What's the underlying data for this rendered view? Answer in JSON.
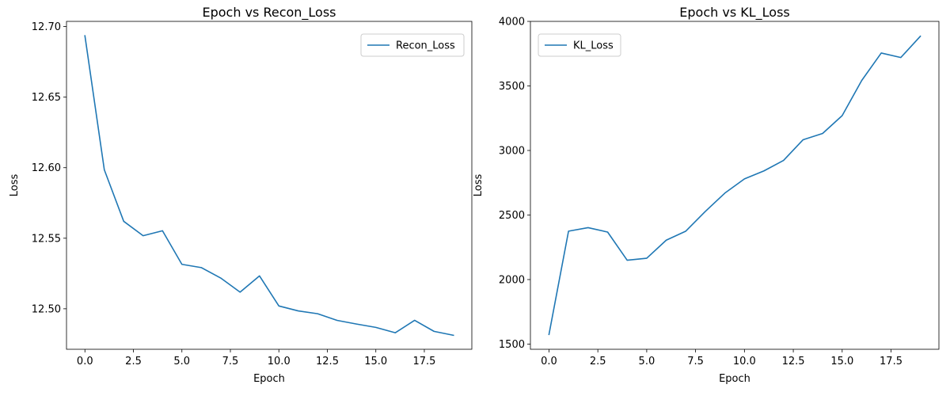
{
  "chart_data": [
    {
      "type": "line",
      "title": "Epoch vs Recon_Loss",
      "xlabel": "Epoch",
      "ylabel": "Loss",
      "xlim": [
        -0.95,
        19.95
      ],
      "ylim": [
        12.4713,
        12.7037
      ],
      "xticks": [
        0.0,
        2.5,
        5.0,
        7.5,
        10.0,
        12.5,
        15.0,
        17.5
      ],
      "xtick_labels": [
        "0.0",
        "2.5",
        "5.0",
        "7.5",
        "10.0",
        "12.5",
        "15.0",
        "17.5"
      ],
      "yticks": [
        12.5,
        12.55,
        12.6,
        12.65,
        12.7
      ],
      "ytick_labels": [
        "12.50",
        "12.55",
        "12.60",
        "12.65",
        "12.70"
      ],
      "grid": false,
      "legend_position": "top-right",
      "color": "#1f77b4",
      "series": [
        {
          "name": "Recon_Loss",
          "x": [
            0,
            1,
            2,
            3,
            4,
            5,
            6,
            7,
            8,
            9,
            10,
            11,
            12,
            13,
            14,
            15,
            16,
            17,
            18,
            19
          ],
          "values": [
            12.6935,
            12.5985,
            12.562,
            12.5518,
            12.5553,
            12.5315,
            12.5292,
            12.5218,
            12.5118,
            12.5233,
            12.502,
            12.4985,
            12.4965,
            12.4918,
            12.4892,
            12.4868,
            12.483,
            12.4918,
            12.484,
            12.4812
          ]
        }
      ]
    },
    {
      "type": "line",
      "title": "Epoch vs KL_Loss",
      "xlabel": "Epoch",
      "ylabel": "Loss",
      "xlim": [
        -0.95,
        19.95
      ],
      "ylim": [
        1460,
        4000
      ],
      "xticks": [
        0.0,
        2.5,
        5.0,
        7.5,
        10.0,
        12.5,
        15.0,
        17.5
      ],
      "xtick_labels": [
        "0.0",
        "2.5",
        "5.0",
        "7.5",
        "10.0",
        "12.5",
        "15.0",
        "17.5"
      ],
      "yticks": [
        1500,
        2000,
        2500,
        3000,
        3500,
        4000
      ],
      "ytick_labels": [
        "1500",
        "2000",
        "2500",
        "3000",
        "3500",
        "4000"
      ],
      "grid": false,
      "legend_position": "top-left",
      "color": "#1f77b4",
      "series": [
        {
          "name": "KL_Loss",
          "x": [
            0,
            1,
            2,
            3,
            4,
            5,
            6,
            7,
            8,
            9,
            10,
            11,
            12,
            13,
            14,
            15,
            16,
            17,
            18,
            19
          ],
          "values": [
            1575,
            2375,
            2402,
            2368,
            2150,
            2165,
            2305,
            2375,
            2528,
            2670,
            2780,
            2842,
            2923,
            3083,
            3132,
            3270,
            3542,
            3755,
            3720,
            3885
          ]
        }
      ]
    }
  ]
}
